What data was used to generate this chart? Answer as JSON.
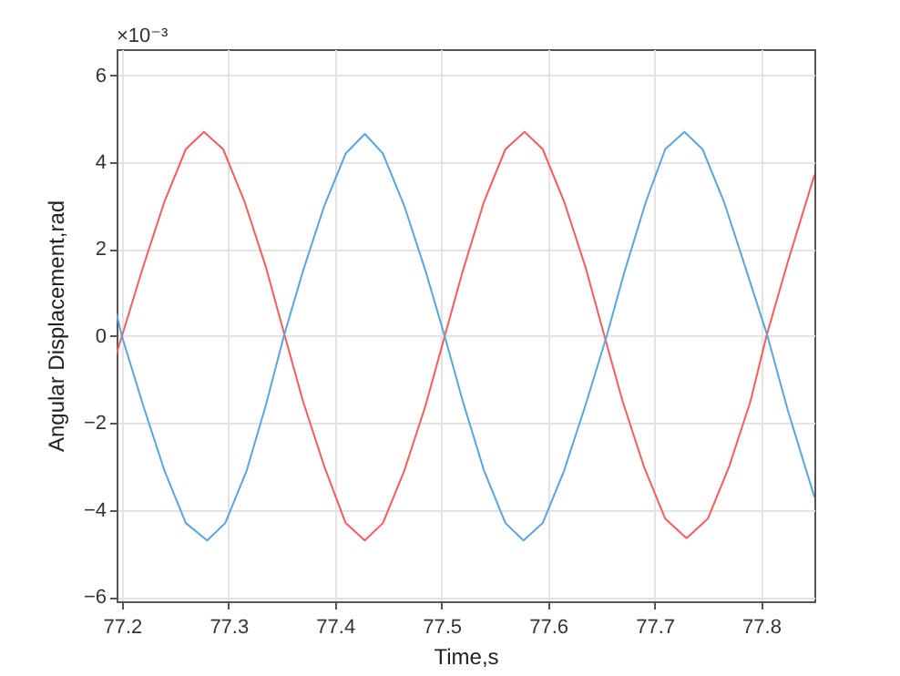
{
  "chart_data": {
    "type": "line",
    "xlabel": "Time,s",
    "ylabel": "Angular Displacement,rad",
    "annotations": [
      "×10⁻³"
    ],
    "xlim": [
      77.195,
      77.85
    ],
    "xticks": [
      77.2,
      77.3,
      77.4,
      77.5,
      77.6,
      77.7,
      77.8
    ],
    "ylim": [
      -6.1,
      6.6
    ],
    "yticks": [
      -6,
      -4,
      -2,
      0,
      2,
      4,
      6
    ],
    "grid": true,
    "legend": false,
    "marker": "none",
    "line_style": "solid",
    "series": [
      {
        "color": "#ff5a5a",
        "x": [
          77.195,
          77.2,
          77.22,
          77.24,
          77.26,
          77.277,
          77.295,
          77.315,
          77.335,
          77.353,
          77.37,
          77.39,
          77.41,
          77.428,
          77.445,
          77.465,
          77.485,
          77.503,
          77.52,
          77.54,
          77.56,
          77.578,
          77.595,
          77.615,
          77.635,
          77.653,
          77.67,
          77.69,
          77.71,
          77.73,
          77.75,
          77.77,
          77.79,
          77.805,
          77.825,
          77.85
        ],
        "values": [
          -0.4,
          0,
          1.6,
          3.1,
          4.3,
          4.7,
          4.3,
          3.1,
          1.6,
          0,
          -1.5,
          -3.0,
          -4.3,
          -4.7,
          -4.3,
          -3.1,
          -1.6,
          0,
          1.5,
          3.1,
          4.3,
          4.7,
          4.3,
          3.1,
          1.6,
          0,
          -1.5,
          -3.0,
          -4.2,
          -4.65,
          -4.2,
          -3.0,
          -1.5,
          0,
          1.7,
          3.7
        ]
      },
      {
        "color": "#5aa5dc",
        "x": [
          77.195,
          77.2,
          77.22,
          77.24,
          77.26,
          77.28,
          77.297,
          77.317,
          77.335,
          77.352,
          77.37,
          77.39,
          77.41,
          77.428,
          77.445,
          77.465,
          77.485,
          77.503,
          77.52,
          77.54,
          77.56,
          77.577,
          77.595,
          77.615,
          77.635,
          77.655,
          77.672,
          77.692,
          77.71,
          77.728,
          77.745,
          77.765,
          77.785,
          77.806,
          77.825,
          77.85
        ],
        "values": [
          0.5,
          0,
          -1.6,
          -3.1,
          -4.3,
          -4.7,
          -4.3,
          -3.1,
          -1.6,
          0,
          1.5,
          3.0,
          4.2,
          4.65,
          4.2,
          3.0,
          1.5,
          0,
          -1.5,
          -3.1,
          -4.3,
          -4.7,
          -4.3,
          -3.1,
          -1.6,
          0,
          1.5,
          3.1,
          4.3,
          4.7,
          4.3,
          3.1,
          1.6,
          0,
          -1.7,
          -3.7
        ]
      }
    ]
  }
}
